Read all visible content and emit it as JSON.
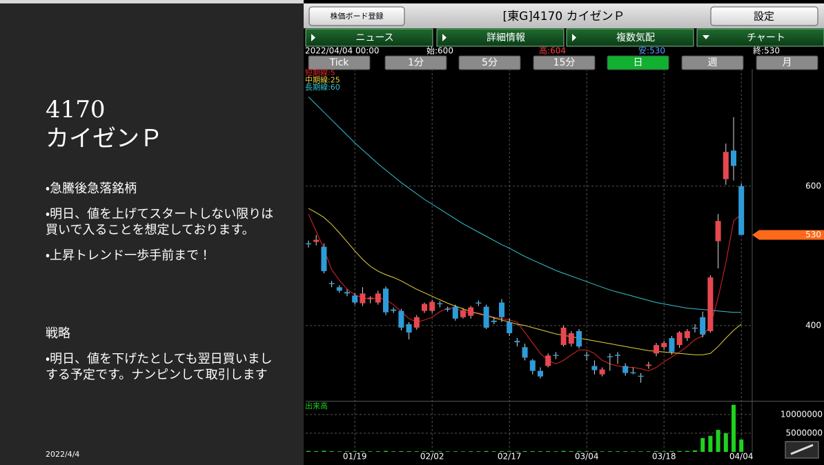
{
  "slide": {
    "code": "4170",
    "name": "カイゼンＰ",
    "points": [
      "・急騰後急落銘柄",
      "・明日、値を上げてスタートしない限りは買いで入ることを想定しております。",
      "・上昇トレンド一歩手前まで！"
    ],
    "strategy_title": "戦略",
    "strategy": [
      "・明日、値を下げたとしても翌日買いましする予定です。ナンピンして取引します"
    ],
    "date": "2022/4/4"
  },
  "app": {
    "register_button": "株価ボード登録",
    "title": "[東G]4170 カイゼンＰ",
    "settings_button": "設定",
    "tabs": [
      "ニュース",
      "詳細情報",
      "複数気配",
      "チャート"
    ],
    "info": {
      "datetime": "2022/04/04 00:00",
      "open": "始:600",
      "high": "高:604",
      "low": "安:530",
      "close": "終:530"
    },
    "periods": [
      "Tick",
      "1分",
      "5分",
      "15分",
      "日",
      "週",
      "月"
    ]
  },
  "chart_data": {
    "type": "candlestick",
    "categories": [
      null,
      null,
      null,
      null,
      null,
      null,
      "01/19",
      null,
      null,
      null,
      null,
      null,
      null,
      null,
      null,
      null,
      "02/02",
      null,
      null,
      null,
      null,
      null,
      null,
      null,
      null,
      null,
      "02/17",
      null,
      null,
      null,
      null,
      null,
      null,
      null,
      null,
      null,
      "03/04",
      null,
      null,
      null,
      null,
      null,
      null,
      null,
      null,
      null,
      "03/18",
      null,
      null,
      null,
      null,
      null,
      null,
      null,
      null,
      null,
      "04/04"
    ],
    "open": [
      518,
      520,
      513,
      461,
      455,
      448,
      443,
      432,
      438,
      433,
      453,
      423,
      421,
      402,
      397,
      421,
      421,
      432,
      424,
      427,
      412,
      414,
      433,
      427,
      407,
      433,
      405,
      378,
      369,
      350,
      335,
      342,
      358,
      372,
      374,
      392,
      358,
      342,
      330,
      356,
      358,
      342,
      333,
      328,
      342,
      360,
      369,
      382,
      372,
      382,
      397,
      412,
      392,
      521,
      610,
      651,
      600
    ],
    "high": [
      522,
      530,
      518,
      464,
      458,
      452,
      447,
      455,
      442,
      450,
      456,
      426,
      424,
      405,
      415,
      433,
      437,
      435,
      427,
      430,
      425,
      428,
      436,
      430,
      412,
      438,
      410,
      382,
      374,
      352,
      340,
      360,
      362,
      400,
      392,
      395,
      362,
      350,
      340,
      360,
      362,
      346,
      340,
      332,
      348,
      375,
      378,
      385,
      392,
      395,
      402,
      420,
      472,
      560,
      661,
      699,
      604
    ],
    "low": [
      512,
      515,
      475,
      455,
      447,
      442,
      430,
      428,
      432,
      430,
      415,
      418,
      393,
      380,
      394,
      418,
      418,
      426,
      420,
      407,
      410,
      410,
      428,
      395,
      402,
      405,
      385,
      370,
      350,
      330,
      324,
      340,
      352,
      370,
      370,
      367,
      350,
      330,
      327,
      335,
      345,
      328,
      330,
      318,
      338,
      356,
      365,
      358,
      368,
      378,
      390,
      383,
      390,
      482,
      602,
      608,
      530
    ],
    "close": [
      517,
      523,
      478,
      460,
      450,
      446,
      433,
      446,
      440,
      446,
      419,
      421,
      397,
      390,
      412,
      431,
      434,
      431,
      423,
      410,
      422,
      426,
      432,
      397,
      405,
      412,
      389,
      376,
      354,
      335,
      327,
      357,
      357,
      397,
      389,
      370,
      357,
      336,
      337,
      355,
      357,
      332,
      332,
      327,
      344,
      372,
      375,
      362,
      390,
      392,
      396,
      387,
      469,
      550,
      649,
      629,
      530
    ],
    "up_color": "#e8474f",
    "down_color": "#2e9bd9",
    "ylim": [
      293,
      768
    ],
    "yticks": [
      400,
      600
    ],
    "last_price": 530,
    "last_price_color": "#ff6a1a",
    "grid": true,
    "moving_averages": [
      {
        "name": "短期線:5",
        "color": "#e0262a",
        "values": [
          560,
          535,
          510,
          480,
          465,
          452,
          444,
          440,
          438,
          440,
          437,
          430,
          420,
          410,
          405,
          408,
          412,
          420,
          425,
          425,
          420,
          418,
          418,
          415,
          412,
          410,
          408,
          405,
          390,
          375,
          360,
          350,
          345,
          350,
          358,
          365,
          365,
          360,
          350,
          345,
          342,
          340,
          340,
          338,
          335,
          340,
          348,
          355,
          362,
          370,
          380,
          385,
          400,
          440,
          490,
          550,
          560
        ]
      },
      {
        "name": "中期線:25",
        "color": "#e6d43a",
        "values": [
          568,
          562,
          555,
          545,
          533,
          520,
          507,
          495,
          485,
          478,
          473,
          469,
          464,
          458,
          452,
          447,
          442,
          437,
          432,
          428,
          424,
          420,
          417,
          414,
          411,
          408,
          405,
          402,
          400,
          397,
          394,
          391,
          388,
          386,
          384,
          382,
          380,
          378,
          376,
          374,
          372,
          370,
          368,
          366,
          364,
          363,
          362,
          361,
          360,
          359,
          358,
          358,
          360,
          370,
          382,
          393,
          402
        ]
      },
      {
        "name": "長期線:60",
        "color": "#34c4d0",
        "values": [
          728,
          717,
          706,
          695,
          684,
          673,
          662,
          652,
          642,
          632,
          623,
          614,
          605,
          597,
          589,
          581,
          574,
          567,
          560,
          553,
          546,
          540,
          534,
          528,
          522,
          516,
          511,
          505,
          499,
          494,
          489,
          484,
          479,
          475,
          471,
          467,
          463,
          459,
          455,
          451,
          448,
          445,
          442,
          439,
          436,
          433,
          431,
          429,
          427,
          425,
          424,
          423,
          422,
          421,
          420,
          419,
          419
        ]
      }
    ],
    "volume": {
      "title": "出来高",
      "color": "#1fd11f",
      "ylim": [
        0,
        13300000
      ],
      "yticks": [
        5000000,
        10000000
      ],
      "values": [
        250000,
        200000,
        300000,
        180000,
        150000,
        160000,
        200000,
        180000,
        150000,
        170000,
        260000,
        150000,
        200000,
        180000,
        170000,
        160000,
        200000,
        150000,
        140000,
        150000,
        130000,
        160000,
        150000,
        220000,
        160000,
        200000,
        180000,
        150000,
        200000,
        190000,
        170000,
        200000,
        150000,
        260000,
        200000,
        220000,
        160000,
        150000,
        140000,
        170000,
        150000,
        160000,
        140000,
        150000,
        150000,
        200000,
        160000,
        220000,
        240000,
        260000,
        400000,
        3700000,
        4300000,
        5900000,
        5000000,
        12600000,
        3300000
      ]
    }
  }
}
